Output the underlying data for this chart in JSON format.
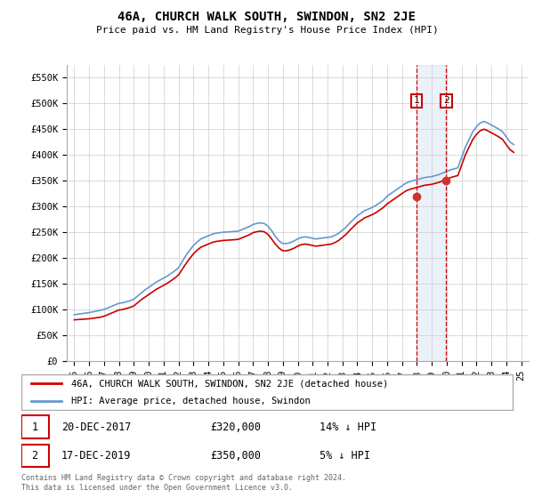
{
  "title": "46A, CHURCH WALK SOUTH, SWINDON, SN2 2JE",
  "subtitle": "Price paid vs. HM Land Registry's House Price Index (HPI)",
  "ylim": [
    0,
    575000
  ],
  "yticks": [
    0,
    50000,
    100000,
    150000,
    200000,
    250000,
    300000,
    350000,
    400000,
    450000,
    500000,
    550000
  ],
  "ytick_labels": [
    "£0",
    "£50K",
    "£100K",
    "£150K",
    "£200K",
    "£250K",
    "£300K",
    "£350K",
    "£400K",
    "£450K",
    "£500K",
    "£550K"
  ],
  "xlim_start": 1994.5,
  "xlim_end": 2025.5,
  "sale1_year": 2017.97,
  "sale1_price": 320000,
  "sale1_label": "20-DEC-2017",
  "sale1_price_str": "£320,000",
  "sale1_pct": "14% ↓ HPI",
  "sale2_year": 2019.97,
  "sale2_price": 350000,
  "sale2_label": "17-DEC-2019",
  "sale2_price_str": "£350,000",
  "sale2_pct": "5% ↓ HPI",
  "red_color": "#cc0000",
  "blue_color": "#6699cc",
  "sale_marker_color": "#cc3333",
  "background_color": "#ffffff",
  "grid_color": "#cccccc",
  "copyright_text": "Contains HM Land Registry data © Crown copyright and database right 2024.\nThis data is licensed under the Open Government Licence v3.0.",
  "legend_label1": "46A, CHURCH WALK SOUTH, SWINDON, SN2 2JE (detached house)",
  "legend_label2": "HPI: Average price, detached house, Swindon",
  "hpi_years": [
    1995,
    1995.25,
    1995.5,
    1995.75,
    1996,
    1996.25,
    1996.5,
    1996.75,
    1997,
    1997.25,
    1997.5,
    1997.75,
    1998,
    1998.25,
    1998.5,
    1998.75,
    1999,
    1999.25,
    1999.5,
    1999.75,
    2000,
    2000.25,
    2000.5,
    2000.75,
    2001,
    2001.25,
    2001.5,
    2001.75,
    2002,
    2002.25,
    2002.5,
    2002.75,
    2003,
    2003.25,
    2003.5,
    2003.75,
    2004,
    2004.25,
    2004.5,
    2004.75,
    2005,
    2005.25,
    2005.5,
    2005.75,
    2006,
    2006.25,
    2006.5,
    2006.75,
    2007,
    2007.25,
    2007.5,
    2007.75,
    2008,
    2008.25,
    2008.5,
    2008.75,
    2009,
    2009.25,
    2009.5,
    2009.75,
    2010,
    2010.25,
    2010.5,
    2010.75,
    2011,
    2011.25,
    2011.5,
    2011.75,
    2012,
    2012.25,
    2012.5,
    2012.75,
    2013,
    2013.25,
    2013.5,
    2013.75,
    2014,
    2014.25,
    2014.5,
    2014.75,
    2015,
    2015.25,
    2015.5,
    2015.75,
    2016,
    2016.25,
    2016.5,
    2016.75,
    2017,
    2017.25,
    2017.5,
    2017.75,
    2018,
    2018.25,
    2018.5,
    2018.75,
    2019,
    2019.25,
    2019.5,
    2019.75,
    2020,
    2020.25,
    2020.5,
    2020.75,
    2021,
    2021.25,
    2021.5,
    2021.75,
    2022,
    2022.25,
    2022.5,
    2022.75,
    2023,
    2023.25,
    2023.5,
    2023.75,
    2024,
    2024.25,
    2024.5
  ],
  "hpi_values": [
    90000,
    91000,
    92000,
    93000,
    94000,
    95500,
    97000,
    98500,
    100000,
    103000,
    106000,
    109000,
    112000,
    113000,
    115000,
    117000,
    120000,
    126000,
    132000,
    138000,
    143000,
    148000,
    153000,
    157000,
    161000,
    165000,
    170000,
    175000,
    181000,
    193000,
    205000,
    215000,
    224000,
    231000,
    237000,
    240000,
    243000,
    246000,
    248000,
    249000,
    250000,
    250500,
    251000,
    251500,
    252000,
    255000,
    258000,
    261000,
    265000,
    267000,
    268000,
    267000,
    262000,
    253000,
    242000,
    233000,
    228000,
    228000,
    230000,
    233000,
    237000,
    240000,
    241000,
    240000,
    238000,
    237000,
    238000,
    239000,
    240000,
    241000,
    244000,
    248000,
    254000,
    260000,
    268000,
    275000,
    282000,
    287000,
    292000,
    295000,
    298000,
    302000,
    307000,
    312000,
    320000,
    325000,
    330000,
    335000,
    340000,
    345000,
    348000,
    350000,
    352000,
    354000,
    356000,
    357000,
    358000,
    360000,
    362000,
    365000,
    368000,
    371000,
    373000,
    375000,
    395000,
    415000,
    430000,
    445000,
    455000,
    462000,
    465000,
    462000,
    458000,
    454000,
    450000,
    445000,
    435000,
    425000,
    420000
  ],
  "red_values": [
    80000,
    80500,
    81000,
    81500,
    82000,
    83000,
    84000,
    85000,
    87000,
    90000,
    93000,
    96000,
    99000,
    100000,
    102000,
    104000,
    107000,
    113000,
    119000,
    124000,
    129000,
    134000,
    139000,
    143000,
    147000,
    151000,
    156000,
    161000,
    167000,
    178000,
    189000,
    199000,
    208000,
    215000,
    221000,
    224000,
    227000,
    230000,
    232000,
    233000,
    234000,
    234500,
    235000,
    235500,
    236000,
    239000,
    242000,
    245000,
    249000,
    251000,
    252000,
    251000,
    246000,
    237000,
    227000,
    219000,
    214000,
    214000,
    216000,
    219000,
    223000,
    226000,
    227000,
    226000,
    224000,
    223000,
    224000,
    225000,
    226000,
    227000,
    230000,
    234000,
    240000,
    246000,
    254000,
    261000,
    268000,
    273000,
    278000,
    281000,
    284000,
    288000,
    293000,
    298000,
    305000,
    310000,
    315000,
    320000,
    325000,
    330000,
    333000,
    335000,
    337000,
    339000,
    341000,
    342000,
    343000,
    345000,
    347000,
    350000,
    353000,
    356000,
    358000,
    360000,
    380000,
    400000,
    415000,
    430000,
    440000,
    447000,
    450000,
    447000,
    443000,
    439000,
    435000,
    430000,
    420000,
    410000,
    405000
  ]
}
